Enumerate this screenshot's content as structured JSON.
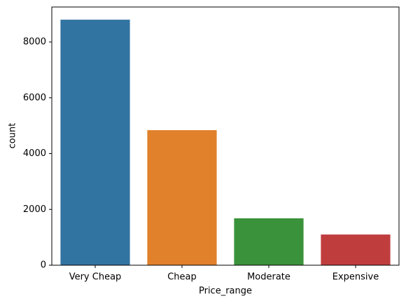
{
  "chart_data": {
    "type": "bar",
    "xlabel": "Price_range",
    "ylabel": "count",
    "categories": [
      "Very Cheap",
      "Cheap",
      "Moderate",
      "Expensive"
    ],
    "values": [
      8800,
      4840,
      1680,
      1100
    ],
    "colors": [
      "#3274a1",
      "#e1812c",
      "#3a923a",
      "#c03d3e"
    ],
    "ylim": [
      0,
      9254
    ],
    "yticks": [
      0,
      2000,
      4000,
      6000,
      8000
    ],
    "grid": false
  }
}
